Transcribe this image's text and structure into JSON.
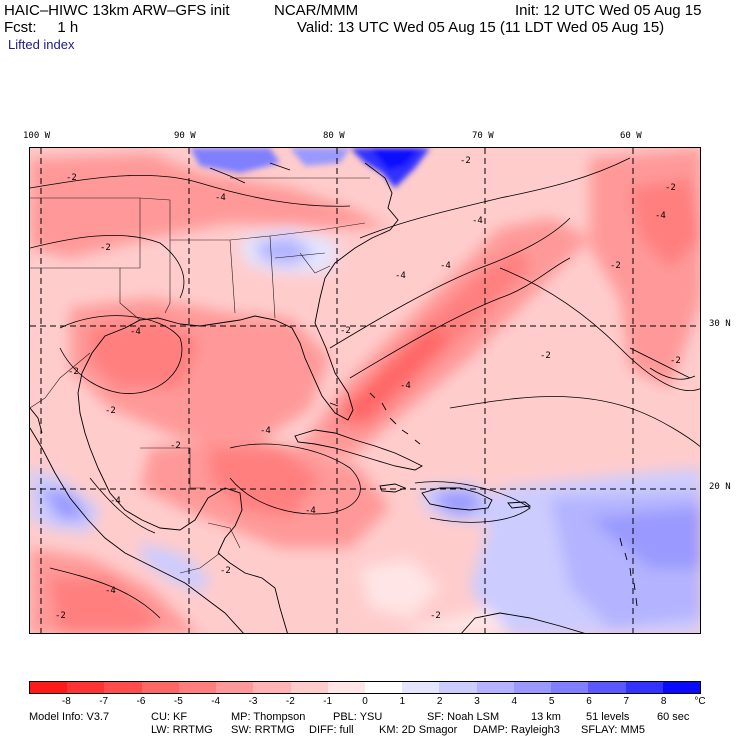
{
  "header": {
    "model_title": "HAIC–HIWC 13km ARW–GFS init",
    "center": "NCAR/MMM",
    "init": "Init: 12 UTC Wed 05 Aug 15",
    "fcst": "Fcst:     1 h",
    "valid": "Valid: 13 UTC Wed 05 Aug 15 (11 LDT Wed 05 Aug 15)",
    "field": "Lifted index"
  },
  "map": {
    "lon_labels": [
      "100 W",
      "90 W",
      "80 W",
      "70 W",
      "60 W"
    ],
    "lat_labels": [
      "30 N",
      "20 N"
    ],
    "contour_labels": [
      "-2",
      "-4",
      "-2",
      "-4",
      "-2",
      "-4",
      "-2",
      "-2",
      "-4",
      "-4",
      "-2",
      "-4",
      "-2",
      "-2",
      "-4",
      "-2",
      "-4",
      "-2",
      "-4",
      "-2",
      "-2",
      "-4",
      "-2",
      "-2",
      "-4"
    ]
  },
  "colorbar": {
    "unit": "°C",
    "labels": [
      "-8",
      "-7",
      "-6",
      "-5",
      "-4",
      "-3",
      "-2",
      "-1",
      "0",
      "1",
      "2",
      "3",
      "4",
      "5",
      "6",
      "7",
      "8"
    ],
    "colors": [
      "#ff1a1a",
      "#ff3333",
      "#ff4d4d",
      "#ff6666",
      "#ff7f7f",
      "#ff9999",
      "#ffb3b3",
      "#ffcccc",
      "#ffe5e5",
      "#ffffff",
      "#e5e5ff",
      "#ccccff",
      "#b3b3ff",
      "#9999ff",
      "#7f7fff",
      "#5959ff",
      "#3333ff",
      "#0a0aff"
    ]
  },
  "footer": {
    "line1": {
      "model_info": "Model Info: V3.7",
      "cu": "CU: KF",
      "mp": "MP: Thompson",
      "pbl": "PBL: YSU",
      "sf": "SF: Noah LSM",
      "res": "13 km",
      "levels": "51 levels",
      "dt": "60 sec"
    },
    "line2": {
      "lw": "LW: RRTMG",
      "sw": "SW: RRTMG",
      "diff": "DIFF: full",
      "km": "KM: 2D Smagor",
      "damp": "DAMP: Rayleigh3",
      "sflay": "SFLAY: MM5"
    }
  }
}
